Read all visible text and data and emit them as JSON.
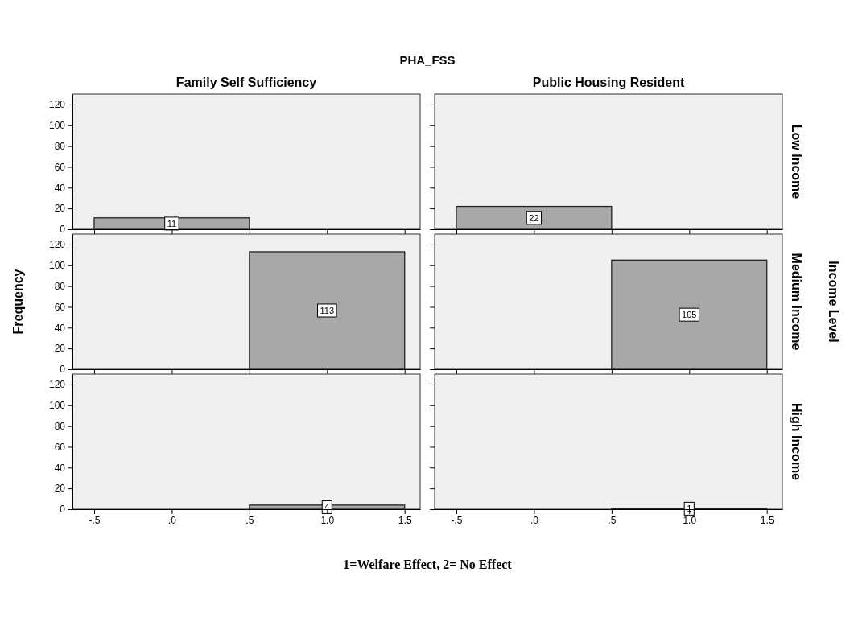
{
  "chart_data": [
    {
      "type": "histogram",
      "title": "PHA_FSS",
      "subtitle": "Family Self Sufficiency",
      "bins": [
        -0.5,
        0.5,
        1.5
      ],
      "values": [
        11,
        0
      ],
      "value_labels": [
        "11",
        null
      ],
      "color": "#a8a8a8",
      "xlim": [
        -0.64,
        1.6
      ],
      "ylim": [
        0,
        130
      ],
      "xticks": [
        -0.5,
        0,
        0.5,
        1,
        1.5
      ],
      "yticks": [
        0,
        20,
        40,
        60,
        80,
        100,
        120
      ],
      "tick_labels": "y"
    },
    {
      "type": "histogram",
      "subtitle": "Public Housing Resident",
      "y2label": "Low Income",
      "bins": [
        -0.5,
        0.5,
        1.5
      ],
      "values": [
        22,
        0
      ],
      "value_labels": [
        "22",
        null
      ],
      "color": "#a8a8a8",
      "xlim": [
        -0.64,
        1.6
      ],
      "ylim": [
        0,
        130
      ],
      "xticks": [
        -0.5,
        0,
        0.5,
        1,
        1.5
      ],
      "yticks": [
        0,
        20,
        40,
        60,
        80,
        100,
        120
      ],
      "tick_labels": false
    },
    {
      "type": "histogram",
      "ylabel": "Frequency",
      "bins": [
        -0.5,
        0.5,
        1.5
      ],
      "values": [
        0,
        113
      ],
      "value_labels": [
        null,
        "113"
      ],
      "color": "#a8a8a8",
      "xlim": [
        -0.64,
        1.6
      ],
      "ylim": [
        0,
        130
      ],
      "xticks": [
        -0.5,
        0,
        0.5,
        1,
        1.5
      ],
      "yticks": [
        0,
        20,
        40,
        60,
        80,
        100,
        120
      ],
      "tick_labels": "y"
    },
    {
      "type": "histogram",
      "y2label": "Medium Income",
      "annotations": [
        "Income Level"
      ],
      "bins": [
        -0.5,
        0.5,
        1.5
      ],
      "values": [
        0,
        105
      ],
      "value_labels": [
        null,
        "105"
      ],
      "color": "#a8a8a8",
      "xlim": [
        -0.64,
        1.6
      ],
      "ylim": [
        0,
        130
      ],
      "xticks": [
        -0.5,
        0,
        0.5,
        1,
        1.5
      ],
      "yticks": [
        0,
        20,
        40,
        60,
        80,
        100,
        120
      ],
      "tick_labels": false
    },
    {
      "type": "histogram",
      "xlabel": "1=Welfare Effect, 2= No Effect",
      "bins": [
        -0.5,
        0.5,
        1.5
      ],
      "values": [
        0,
        4
      ],
      "value_labels": [
        null,
        "4"
      ],
      "color": "#a8a8a8",
      "xlim": [
        -0.64,
        1.6
      ],
      "ylim": [
        0,
        130
      ],
      "xticks": [
        {
          "value": -0.5,
          "label": "-.5"
        },
        {
          "value": 0,
          "label": ".0"
        },
        {
          "value": 0.5,
          "label": ".5"
        },
        {
          "value": 1,
          "label": "1.0"
        },
        {
          "value": 1.5,
          "label": "1.5"
        }
      ],
      "yticks": [
        0,
        20,
        40,
        60,
        80,
        100,
        120
      ]
    },
    {
      "type": "histogram",
      "y2label": "High Income",
      "bins": [
        -0.5,
        0.5,
        1.5
      ],
      "values": [
        0,
        1
      ],
      "value_labels": [
        null,
        "1"
      ],
      "color": "#a8a8a8",
      "xlim": [
        -0.64,
        1.6
      ],
      "ylim": [
        0,
        130
      ],
      "xticks": [
        {
          "value": -0.5,
          "label": "-.5"
        },
        {
          "value": 0,
          "label": ".0"
        },
        {
          "value": 0.5,
          "label": ".5"
        },
        {
          "value": 1,
          "label": "1.0"
        },
        {
          "value": 1.5,
          "label": "1.5"
        }
      ],
      "yticks": [
        0,
        20,
        40,
        60,
        80,
        100,
        120
      ],
      "tick_labels": "x"
    }
  ]
}
